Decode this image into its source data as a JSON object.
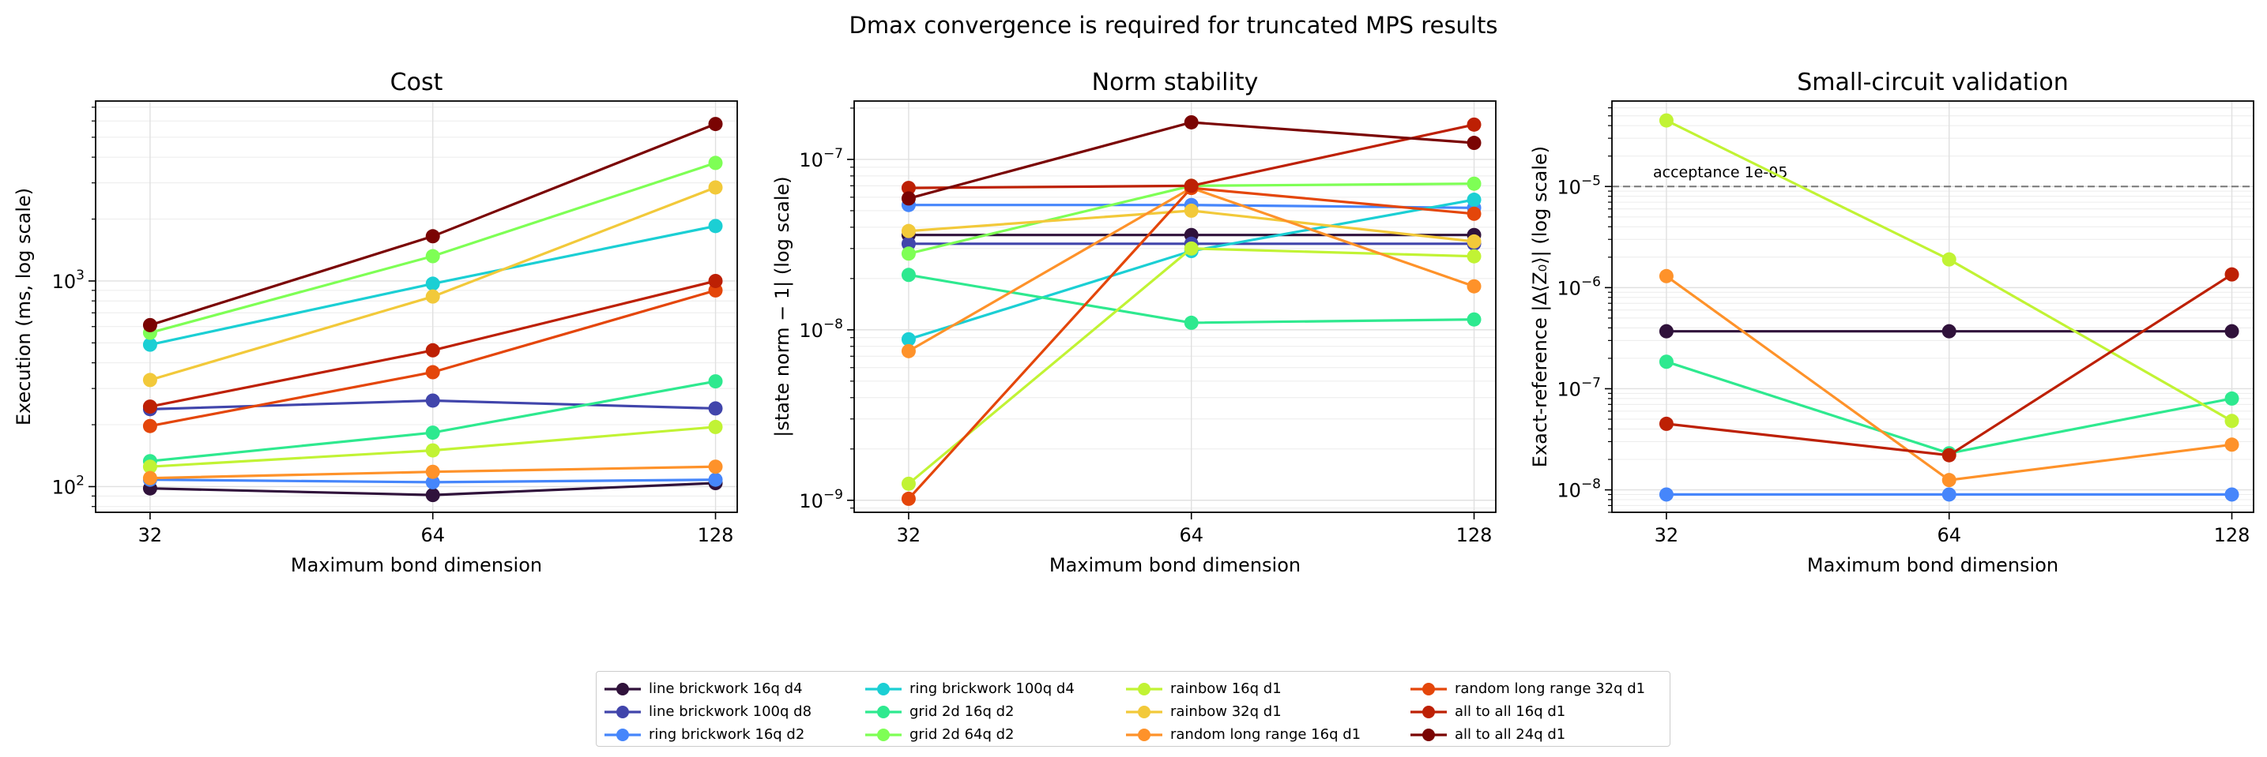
{
  "figure": {
    "title": "Dmax convergence is required for truncated MPS results"
  },
  "legend": {
    "entries": [
      {
        "label": "line brickwork 16q d4",
        "color": "#30123b"
      },
      {
        "label": "line brickwork 100q d8",
        "color": "#4145ab"
      },
      {
        "label": "ring brickwork 16q d2",
        "color": "#4686fb"
      },
      {
        "label": "ring brickwork 100q d4",
        "color": "#1bcfd4"
      },
      {
        "label": "grid 2d 16q d2",
        "color": "#2ee98f"
      },
      {
        "label": "grid 2d 64q d2",
        "color": "#7eff55"
      },
      {
        "label": "rainbow 16q d1",
        "color": "#c1f334"
      },
      {
        "label": "rainbow 32q d1",
        "color": "#f2c93a"
      },
      {
        "label": "random long range 16q d1",
        "color": "#fe922a"
      },
      {
        "label": "random long range 32q d1",
        "color": "#e4460a"
      },
      {
        "label": "all to all 16q d1",
        "color": "#bd2004"
      },
      {
        "label": "all to all 24q d1",
        "color": "#7a0403"
      }
    ]
  },
  "chart_data": [
    {
      "type": "line",
      "title": "Cost",
      "xlabel": "Maximum bond dimension",
      "ylabel": "Execution (ms, log scale)",
      "yscale": "log",
      "ylim": [
        75,
        7500
      ],
      "xlim": [
        28,
        135
      ],
      "x": [
        32,
        64,
        128
      ],
      "xticks": [
        "32",
        "64",
        "128"
      ],
      "yticks": [
        {
          "value": 100,
          "base": "10",
          "exp": "2"
        },
        {
          "value": 1000,
          "base": "10",
          "exp": "3"
        }
      ],
      "grid": true,
      "series": [
        {
          "name": "line brickwork 16q d4",
          "values": [
            98,
            91,
            104
          ]
        },
        {
          "name": "line brickwork 100q d8",
          "values": [
            238,
            262,
            240
          ]
        },
        {
          "name": "ring brickwork 16q d2",
          "values": [
            108,
            105,
            108
          ]
        },
        {
          "name": "ring brickwork 100q d4",
          "values": [
            490,
            970,
            1850
          ]
        },
        {
          "name": "grid 2d 16q d2",
          "values": [
            133,
            183,
            325
          ]
        },
        {
          "name": "grid 2d 64q d2",
          "values": [
            560,
            1320,
            3750
          ]
        },
        {
          "name": "rainbow 16q d1",
          "values": [
            125,
            150,
            195
          ]
        },
        {
          "name": "rainbow 32q d1",
          "values": [
            330,
            840,
            2850
          ]
        },
        {
          "name": "random long range 16q d1",
          "values": [
            110,
            118,
            125
          ]
        },
        {
          "name": "random long range 32q d1",
          "values": [
            197,
            360,
            900
          ]
        },
        {
          "name": "all to all 16q d1",
          "values": [
            245,
            460,
            1000
          ]
        },
        {
          "name": "all to all 24q d1",
          "values": [
            610,
            1650,
            5800
          ]
        }
      ]
    },
    {
      "type": "line",
      "title": "Norm stability",
      "xlabel": "Maximum bond dimension",
      "ylabel": "|state norm − 1| (log scale)",
      "yscale": "log",
      "ylim": [
        8.5e-10,
        2.2e-07
      ],
      "xlim": [
        28,
        135
      ],
      "x": [
        32,
        64,
        128
      ],
      "xticks": [
        "32",
        "64",
        "128"
      ],
      "yticks": [
        {
          "value": 1e-09,
          "base": "10",
          "exp": "−9"
        },
        {
          "value": 1e-08,
          "base": "10",
          "exp": "−8"
        },
        {
          "value": 1e-07,
          "base": "10",
          "exp": "−7"
        }
      ],
      "grid": true,
      "series": [
        {
          "name": "line brickwork 16q d4",
          "values": [
            3.6e-08,
            3.6e-08,
            3.6e-08
          ]
        },
        {
          "name": "line brickwork 100q d8",
          "values": [
            3.2e-08,
            3.2e-08,
            3.2e-08
          ]
        },
        {
          "name": "ring brickwork 16q d2",
          "values": [
            5.4e-08,
            5.4e-08,
            5.2e-08
          ]
        },
        {
          "name": "ring brickwork 100q d4",
          "values": [
            8.8e-09,
            2.9e-08,
            5.8e-08
          ]
        },
        {
          "name": "grid 2d 16q d2",
          "values": [
            2.1e-08,
            1.1e-08,
            1.15e-08
          ]
        },
        {
          "name": "grid 2d 64q d2",
          "values": [
            2.8e-08,
            7e-08,
            7.2e-08
          ]
        },
        {
          "name": "rainbow 16q d1",
          "values": [
            1.25e-09,
            3e-08,
            2.7e-08
          ]
        },
        {
          "name": "rainbow 32q d1",
          "values": [
            3.8e-08,
            5e-08,
            3.3e-08
          ]
        },
        {
          "name": "random long range 16q d1",
          "values": [
            7.5e-09,
            6.8e-08,
            1.8e-08
          ]
        },
        {
          "name": "random long range 32q d1",
          "values": [
            1.02e-09,
            6.8e-08,
            4.8e-08
          ]
        },
        {
          "name": "all to all 16q d1",
          "values": [
            6.8e-08,
            7e-08,
            1.6e-07
          ]
        },
        {
          "name": "all to all 24q d1",
          "values": [
            5.9e-08,
            1.65e-07,
            1.25e-07
          ]
        }
      ]
    },
    {
      "type": "line",
      "title": "Small-circuit validation",
      "xlabel": "Maximum bond dimension",
      "ylabel": "Exact-reference |Δ⟨Z₀⟩| (log scale)",
      "yscale": "log",
      "ylim": [
        6e-09,
        7e-05
      ],
      "xlim": [
        28,
        135
      ],
      "x": [
        32,
        64,
        128
      ],
      "xticks": [
        "32",
        "64",
        "128"
      ],
      "yticks": [
        {
          "value": 1e-08,
          "base": "10",
          "exp": "−8"
        },
        {
          "value": 1e-07,
          "base": "10",
          "exp": "−7"
        },
        {
          "value": 1e-06,
          "base": "10",
          "exp": "−6"
        },
        {
          "value": 1e-05,
          "base": "10",
          "exp": "−5"
        }
      ],
      "grid": true,
      "threshold": {
        "value": 1e-05,
        "label": "acceptance 1e-05"
      },
      "series": [
        {
          "name": "line brickwork 16q d4",
          "values": [
            3.7e-07,
            3.7e-07,
            3.7e-07
          ]
        },
        {
          "name": "ring brickwork 16q d2",
          "values": [
            9e-09,
            9e-09,
            9e-09
          ]
        },
        {
          "name": "grid 2d 16q d2",
          "values": [
            1.85e-07,
            2.3e-08,
            8e-08
          ]
        },
        {
          "name": "rainbow 16q d1",
          "values": [
            4.5e-05,
            1.9e-06,
            4.8e-08
          ]
        },
        {
          "name": "random long range 16q d1",
          "values": [
            1.3e-06,
            1.25e-08,
            2.8e-08
          ]
        },
        {
          "name": "all to all 16q d1",
          "values": [
            4.5e-08,
            2.2e-08,
            1.35e-06
          ]
        }
      ]
    }
  ]
}
